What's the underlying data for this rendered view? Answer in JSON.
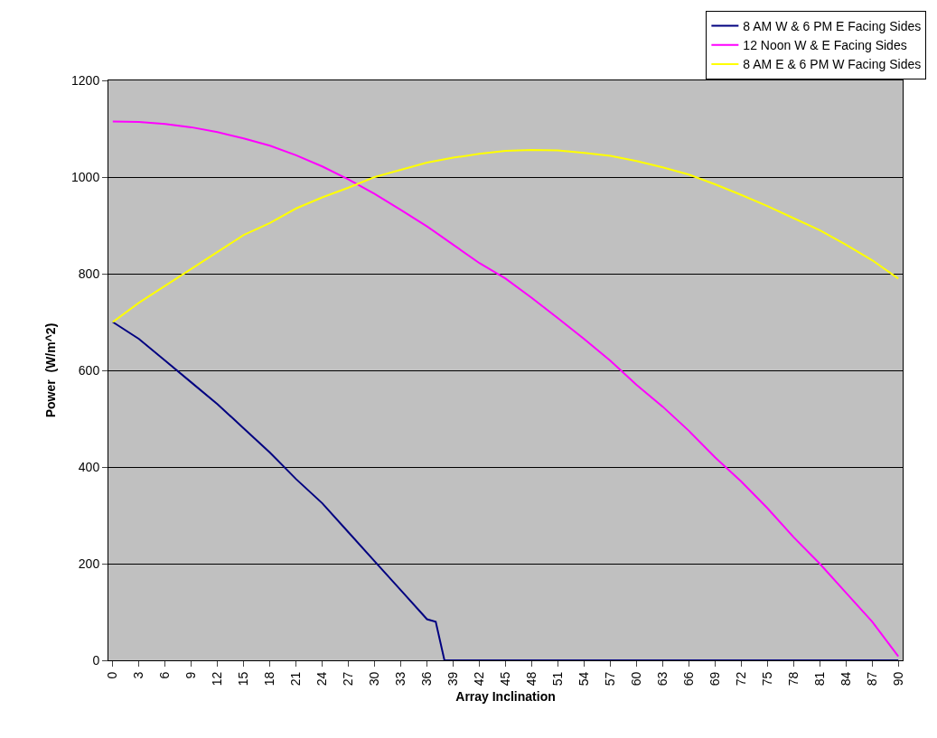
{
  "chart_data": {
    "type": "line",
    "xlabel": "Array Inclination",
    "ylabel": "Power  (W/m^2)",
    "x": [
      0,
      3,
      6,
      9,
      12,
      15,
      18,
      21,
      24,
      27,
      30,
      33,
      36,
      39,
      42,
      45,
      48,
      51,
      54,
      57,
      60,
      63,
      66,
      69,
      72,
      75,
      78,
      81,
      84,
      87,
      90
    ],
    "series": [
      {
        "name": "8 AM W & 6 PM E Facing Sides",
        "color": "#000080",
        "x": [
          0,
          3,
          6,
          9,
          12,
          15,
          18,
          21,
          24,
          27,
          30,
          33,
          36,
          37,
          38,
          90
        ],
        "values": [
          700,
          665,
          620,
          575,
          530,
          480,
          430,
          375,
          325,
          265,
          205,
          145,
          85,
          80,
          0,
          0
        ]
      },
      {
        "name": "12 Noon W & E Facing Sides",
        "color": "#ff00ff",
        "values": [
          1115,
          1114,
          1110,
          1103,
          1093,
          1080,
          1065,
          1045,
          1022,
          995,
          965,
          932,
          898,
          860,
          822,
          790,
          750,
          708,
          665,
          620,
          570,
          525,
          475,
          420,
          370,
          315,
          255,
          200,
          140,
          80,
          8
        ]
      },
      {
        "name": "8 AM E & 6 PM W Facing Sides",
        "color": "#ffff00",
        "values": [
          700,
          740,
          775,
          810,
          845,
          880,
          905,
          935,
          958,
          978,
          1000,
          1015,
          1030,
          1040,
          1048,
          1054,
          1056,
          1055,
          1050,
          1044,
          1033,
          1020,
          1005,
          985,
          963,
          940,
          915,
          890,
          860,
          828,
          790
        ]
      }
    ],
    "xlim": [
      -0.5,
      90.5
    ],
    "xticks": [
      0,
      3,
      6,
      9,
      12,
      15,
      18,
      21,
      24,
      27,
      30,
      33,
      36,
      39,
      42,
      45,
      48,
      51,
      54,
      57,
      60,
      63,
      66,
      69,
      72,
      75,
      78,
      81,
      84,
      87,
      90
    ],
    "ylim": [
      0,
      1200
    ],
    "yticks": [
      0,
      200,
      400,
      600,
      800,
      1000,
      1200
    ],
    "grid": "y",
    "legend": "top right",
    "marker": "none",
    "line_style": "solid"
  }
}
